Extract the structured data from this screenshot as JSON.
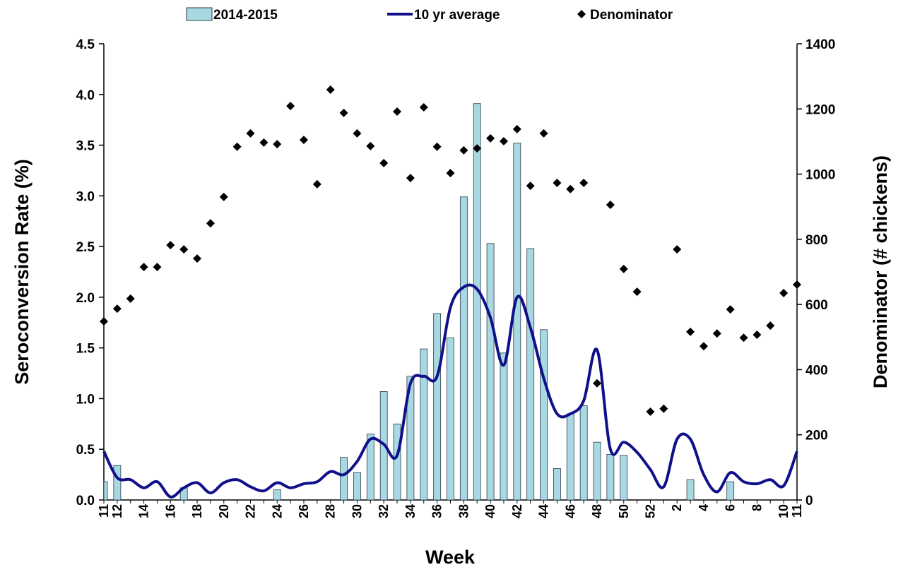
{
  "chart_data": {
    "type": "combo",
    "x_label": "Week",
    "y_label": "Seroconversion Rate (%)",
    "y2_label": "Denominator (# chickens)",
    "categories": [
      "11",
      "12",
      null,
      "14",
      null,
      "16",
      null,
      "18",
      null,
      "20",
      null,
      "22",
      null,
      "24",
      null,
      "26",
      null,
      "28",
      null,
      "30",
      null,
      "32",
      null,
      "34",
      null,
      "36",
      null,
      "38",
      null,
      "40",
      null,
      "42",
      null,
      "44",
      null,
      "46",
      null,
      "48",
      null,
      "50",
      null,
      "52",
      null,
      "2",
      null,
      "4",
      null,
      "6",
      null,
      "8",
      null,
      "10",
      "11"
    ],
    "series": [
      {
        "name": "2014-2015",
        "type": "bar",
        "color": "#a8d9e2",
        "values": [
          0.18,
          0.34,
          0,
          0,
          0,
          0,
          0.12,
          0,
          0,
          0,
          0,
          0,
          0,
          0.1,
          0,
          0,
          0,
          0,
          0.42,
          0.27,
          0.65,
          1.07,
          0.75,
          1.22,
          1.49,
          1.84,
          1.6,
          2.99,
          3.91,
          2.53,
          1.45,
          3.52,
          2.48,
          1.68,
          0.31,
          0.85,
          0.93,
          0.57,
          0.45,
          0.44,
          0,
          0,
          0,
          0,
          0.2,
          0,
          0,
          0.18,
          0,
          0,
          0,
          0,
          0
        ]
      },
      {
        "name": "10 yr average",
        "type": "line",
        "color": "#10108a",
        "values": [
          0.48,
          0.22,
          0.2,
          0.12,
          0.18,
          0.03,
          0.12,
          0.17,
          0.07,
          0.17,
          0.2,
          0.13,
          0.09,
          0.17,
          0.12,
          0.16,
          0.18,
          0.28,
          0.25,
          0.38,
          0.6,
          0.55,
          0.44,
          1.15,
          1.22,
          1.22,
          1.9,
          2.1,
          2.08,
          1.8,
          1.33,
          2.0,
          1.7,
          1.2,
          0.85,
          0.85,
          0.98,
          1.48,
          0.5,
          0.57,
          0.47,
          0.3,
          0.13,
          0.6,
          0.6,
          0.25,
          0.08,
          0.27,
          0.18,
          0.16,
          0.2,
          0.14,
          0.48
        ]
      },
      {
        "name": "Denominator",
        "type": "scatter",
        "axis": "y2",
        "color": "#000000",
        "values": [
          548,
          587,
          618,
          715,
          715,
          782,
          769,
          741,
          849,
          930,
          1084,
          1125,
          1097,
          1092,
          1209,
          1105,
          969,
          1259,
          1188,
          1125,
          1086,
          1034,
          1192,
          988,
          1205,
          1084,
          1003,
          1073,
          1079,
          1110,
          1101,
          1138,
          964,
          1125,
          973,
          954,
          973,
          358,
          906,
          709,
          639,
          271,
          280,
          769,
          516,
          472,
          511,
          585,
          498,
          507,
          535,
          635,
          661
        ]
      }
    ],
    "ylim": [
      0,
      4.5
    ],
    "yticks": [
      {
        "value": 0,
        "label": "0.0"
      },
      0.5,
      {
        "value": 1,
        "label": "1.0"
      },
      1.5,
      {
        "value": 2,
        "label": "2.0"
      },
      2.5,
      {
        "value": 3,
        "label": "3.0"
      },
      3.5,
      {
        "value": 4,
        "label": "4.0"
      },
      4.5
    ],
    "y2lim": [
      0,
      1400
    ],
    "y2ticks": [
      0,
      200,
      400,
      600,
      800,
      1000,
      1200,
      1400
    ],
    "legend": "top"
  }
}
